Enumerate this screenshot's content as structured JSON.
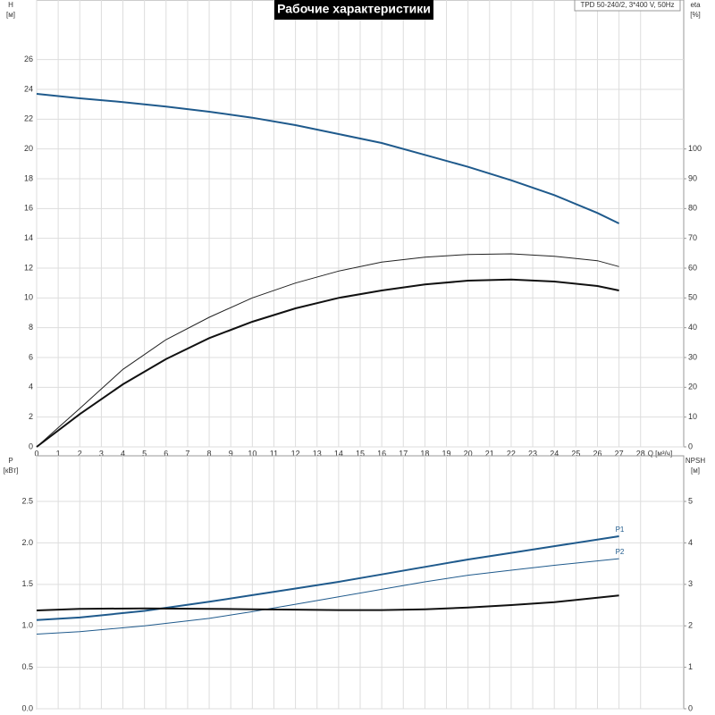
{
  "chart_data": [
    {
      "type": "line",
      "title": "Рабочие характеристики",
      "subtitle": "TPD 50-240/2, 3*400 V, 50Hz",
      "xlabel": "Q [м³/ч]",
      "ylabel": [
        "H",
        "[м]"
      ],
      "y2label": [
        "eta",
        "[%]"
      ],
      "xlim": [
        0,
        30
      ],
      "xticks": [
        0,
        1,
        2,
        3,
        4,
        5,
        6,
        7,
        8,
        9,
        10,
        11,
        12,
        13,
        14,
        15,
        16,
        17,
        18,
        19,
        20,
        21,
        22,
        23,
        24,
        25,
        26,
        27,
        28
      ],
      "ylim": [
        0,
        30
      ],
      "yticks": [
        0,
        2,
        4,
        6,
        8,
        10,
        12,
        14,
        16,
        18,
        20,
        22,
        24,
        26
      ],
      "y2lim": [
        0,
        150
      ],
      "y2ticks": [
        0,
        10,
        20,
        30,
        40,
        50,
        60,
        70,
        80,
        90,
        100
      ],
      "grid": true,
      "x": [
        0,
        2,
        4,
        6,
        8,
        10,
        12,
        14,
        16,
        18,
        20,
        22,
        24,
        26,
        27
      ],
      "series": [
        {
          "color": "#1f5a8c",
          "linewidth": 2,
          "values": [
            23.7,
            23.4,
            23.15,
            22.85,
            22.5,
            22.1,
            21.6,
            21.0,
            20.4,
            19.6,
            18.8,
            17.9,
            16.9,
            15.7,
            15.0
          ]
        },
        {
          "color": "#222222",
          "linewidth": 1,
          "axis": "y2",
          "values": [
            0,
            12.9,
            26,
            36,
            43.5,
            50,
            55,
            59,
            62,
            63.7,
            64.6,
            64.8,
            64,
            62.5,
            60.5
          ]
        },
        {
          "color": "#111111",
          "linewidth": 2,
          "axis": "y2",
          "values": [
            0,
            11,
            21,
            29.5,
            36.5,
            42,
            46.5,
            50,
            52.5,
            54.5,
            55.8,
            56.2,
            55.5,
            54,
            52.5
          ]
        }
      ]
    },
    {
      "type": "line",
      "ylabel": [
        "P",
        "[кВт]"
      ],
      "y2label": [
        "NPSH",
        "[м]"
      ],
      "xlim": [
        0,
        30
      ],
      "xticks": [
        0,
        1,
        2,
        3,
        4,
        5,
        6,
        7,
        8,
        9,
        10,
        11,
        12,
        13,
        14,
        15,
        16,
        17,
        18,
        19,
        20,
        21,
        22,
        23,
        24,
        25,
        26,
        27,
        28
      ],
      "ylim": [
        0,
        3.05
      ],
      "yticks": [
        {
          "value": 0,
          "label": "0.0"
        },
        0.5,
        {
          "value": 1,
          "label": "1.0"
        },
        1.5,
        {
          "value": 2,
          "label": "2.0"
        },
        2.5
      ],
      "y2lim": [
        0,
        6.1
      ],
      "y2ticks": [
        0,
        1,
        2,
        3,
        4,
        5
      ],
      "grid": true,
      "x": [
        0,
        2,
        5,
        8,
        10,
        12,
        14,
        16,
        18,
        20,
        22,
        24,
        27
      ],
      "series": [
        {
          "name": "P1",
          "color": "#1f5a8c",
          "linewidth": 2,
          "values": [
            1.07,
            1.1,
            1.18,
            1.29,
            1.37,
            1.45,
            1.53,
            1.62,
            1.71,
            1.8,
            1.88,
            1.96,
            2.08
          ]
        },
        {
          "name": "P2",
          "color": "#1f5a8c",
          "linewidth": 1,
          "values": [
            0.9,
            0.93,
            1.0,
            1.09,
            1.17,
            1.26,
            1.35,
            1.44,
            1.53,
            1.61,
            1.67,
            1.73,
            1.81
          ]
        },
        {
          "color": "#111111",
          "linewidth": 2,
          "axis": "y2",
          "values": [
            2.37,
            2.41,
            2.42,
            2.41,
            2.4,
            2.39,
            2.38,
            2.38,
            2.4,
            2.44,
            2.5,
            2.57,
            2.73
          ]
        }
      ]
    }
  ]
}
